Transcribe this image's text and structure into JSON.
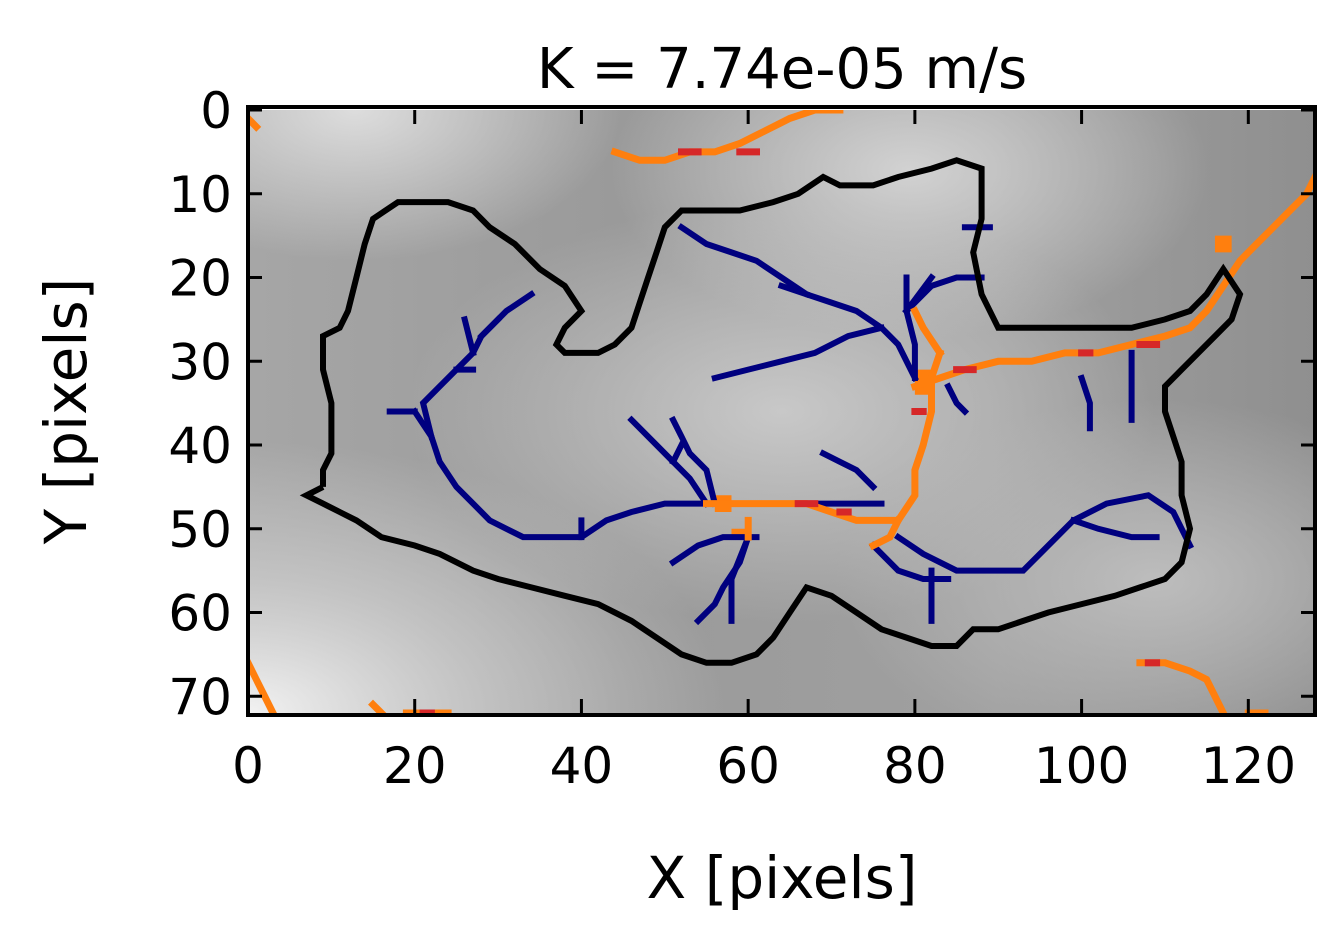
{
  "chart_data": {
    "type": "heatmap",
    "title": "K = 7.74e-05 m/s",
    "xlabel": "X [pixels]",
    "ylabel": "Y [pixels]",
    "xlim": [
      0,
      128
    ],
    "ylim": [
      72,
      0
    ],
    "xticks": [
      0,
      20,
      40,
      60,
      80,
      100,
      120
    ],
    "yticks": [
      0,
      10,
      20,
      30,
      40,
      50,
      60,
      70
    ],
    "colormap": "gray",
    "grid": false,
    "colors": {
      "boundary": "#000000",
      "blue_channels": "#00007f",
      "orange_channels": "#ff7f0e",
      "red_channels": "#d62728"
    },
    "basin_boundary": [
      [
        9,
        45
      ],
      [
        7,
        46
      ],
      [
        9,
        47
      ],
      [
        11,
        48
      ],
      [
        13,
        49
      ],
      [
        16,
        51
      ],
      [
        20,
        52
      ],
      [
        23,
        53
      ],
      [
        27,
        55
      ],
      [
        30,
        56
      ],
      [
        34,
        57
      ],
      [
        38,
        58
      ],
      [
        42,
        59
      ],
      [
        46,
        61
      ],
      [
        49,
        63
      ],
      [
        52,
        65
      ],
      [
        55,
        66
      ],
      [
        58,
        66
      ],
      [
        61,
        65
      ],
      [
        63,
        63
      ],
      [
        65,
        60
      ],
      [
        67,
        57
      ],
      [
        70,
        58
      ],
      [
        73,
        60
      ],
      [
        76,
        62
      ],
      [
        79,
        63
      ],
      [
        82,
        64
      ],
      [
        85,
        64
      ],
      [
        87,
        62
      ],
      [
        90,
        62
      ],
      [
        93,
        61
      ],
      [
        96,
        60
      ],
      [
        100,
        59
      ],
      [
        104,
        58
      ],
      [
        107,
        57
      ],
      [
        110,
        56
      ],
      [
        112,
        54
      ],
      [
        113,
        50
      ],
      [
        112,
        46
      ],
      [
        112,
        42
      ],
      [
        111,
        39
      ],
      [
        110,
        36
      ],
      [
        110,
        33
      ],
      [
        112,
        31
      ],
      [
        114,
        29
      ],
      [
        116,
        27
      ],
      [
        118,
        25
      ],
      [
        119,
        22
      ],
      [
        117,
        19
      ],
      [
        115,
        22
      ],
      [
        113,
        24
      ],
      [
        110,
        25
      ],
      [
        106,
        26
      ],
      [
        102,
        26
      ],
      [
        98,
        26
      ],
      [
        94,
        26
      ],
      [
        90,
        26
      ],
      [
        88,
        22
      ],
      [
        87,
        17
      ],
      [
        88,
        13
      ],
      [
        88,
        7
      ],
      [
        85,
        6
      ],
      [
        82,
        7
      ],
      [
        78,
        8
      ],
      [
        75,
        9
      ],
      [
        71,
        9
      ],
      [
        69,
        8
      ],
      [
        66,
        10
      ],
      [
        63,
        11
      ],
      [
        59,
        12
      ],
      [
        55,
        12
      ],
      [
        52,
        12
      ],
      [
        50,
        14
      ],
      [
        49,
        17
      ],
      [
        48,
        20
      ],
      [
        47,
        23
      ],
      [
        46,
        26
      ],
      [
        44,
        28
      ],
      [
        42,
        29
      ],
      [
        40,
        29
      ],
      [
        38,
        29
      ],
      [
        37,
        28
      ],
      [
        38,
        26
      ],
      [
        40,
        24
      ],
      [
        38,
        21
      ],
      [
        35,
        19
      ],
      [
        32,
        16
      ],
      [
        29,
        14
      ],
      [
        27,
        12
      ],
      [
        24,
        11
      ],
      [
        21,
        11
      ],
      [
        18,
        11
      ],
      [
        15,
        13
      ],
      [
        14,
        16
      ],
      [
        13,
        20
      ],
      [
        12,
        24
      ],
      [
        11,
        26
      ],
      [
        9,
        27
      ],
      [
        9,
        31
      ],
      [
        10,
        35
      ],
      [
        10,
        38
      ],
      [
        10,
        41
      ],
      [
        9,
        43
      ],
      [
        9,
        45
      ]
    ],
    "blue_channels": [
      [
        [
          20,
          36
        ],
        [
          22,
          39
        ],
        [
          23,
          42
        ],
        [
          25,
          45
        ],
        [
          27,
          47
        ],
        [
          29,
          49
        ],
        [
          31,
          50
        ],
        [
          33,
          51
        ],
        [
          37,
          51
        ],
        [
          40,
          51
        ],
        [
          43,
          49
        ],
        [
          46,
          48
        ],
        [
          50,
          47
        ],
        [
          55,
          47
        ]
      ],
      [
        [
          17,
          36
        ],
        [
          20,
          36
        ]
      ],
      [
        [
          22,
          39
        ],
        [
          21,
          35
        ],
        [
          23,
          33
        ],
        [
          25,
          31
        ],
        [
          27,
          29
        ],
        [
          28,
          27
        ],
        [
          31,
          24
        ],
        [
          34,
          22
        ]
      ],
      [
        [
          25,
          31
        ],
        [
          27,
          31
        ]
      ],
      [
        [
          27,
          29
        ],
        [
          26,
          25
        ]
      ],
      [
        [
          28,
          27
        ],
        [
          30,
          25
        ]
      ],
      [
        [
          40,
          49
        ],
        [
          40,
          51
        ]
      ],
      [
        [
          55,
          47
        ],
        [
          53,
          44
        ],
        [
          51,
          42
        ],
        [
          49,
          40
        ],
        [
          46,
          37
        ]
      ],
      [
        [
          51,
          42
        ],
        [
          52,
          40
        ]
      ],
      [
        [
          55,
          47
        ],
        [
          59,
          47
        ],
        [
          63,
          47
        ],
        [
          67,
          47
        ],
        [
          70,
          47
        ],
        [
          73,
          47
        ],
        [
          76,
          47
        ]
      ],
      [
        [
          56,
          47
        ],
        [
          55,
          43
        ],
        [
          53,
          41
        ],
        [
          52,
          39
        ],
        [
          51,
          37
        ]
      ],
      [
        [
          61,
          51
        ],
        [
          57,
          51
        ],
        [
          54,
          52
        ],
        [
          51,
          54
        ]
      ],
      [
        [
          60,
          51
        ],
        [
          59,
          54
        ],
        [
          57,
          57
        ],
        [
          56,
          59
        ],
        [
          54,
          61
        ]
      ],
      [
        [
          60,
          51
        ],
        [
          58,
          56
        ],
        [
          58,
          61
        ]
      ],
      [
        [
          75,
          45
        ],
        [
          73,
          43
        ],
        [
          71,
          42
        ],
        [
          69,
          41
        ]
      ],
      [
        [
          80,
          32
        ],
        [
          78,
          28
        ],
        [
          76,
          26
        ],
        [
          73,
          24
        ],
        [
          70,
          23
        ],
        [
          67,
          22
        ],
        [
          64,
          20
        ],
        [
          61,
          18
        ],
        [
          58,
          17
        ],
        [
          55,
          16
        ],
        [
          52,
          14
        ]
      ],
      [
        [
          76,
          26
        ],
        [
          72,
          27
        ],
        [
          68,
          29
        ],
        [
          64,
          30
        ],
        [
          60,
          31
        ],
        [
          56,
          32
        ]
      ],
      [
        [
          67,
          22
        ],
        [
          64,
          21
        ]
      ],
      [
        [
          80,
          32
        ],
        [
          80,
          28
        ],
        [
          79,
          24
        ],
        [
          79,
          20
        ]
      ],
      [
        [
          79,
          24
        ],
        [
          82,
          21
        ],
        [
          85,
          20
        ],
        [
          88,
          20
        ]
      ],
      [
        [
          79,
          24
        ],
        [
          82,
          20
        ]
      ],
      [
        [
          86,
          14
        ],
        [
          89,
          14
        ]
      ],
      [
        [
          84,
          33
        ],
        [
          85,
          35
        ],
        [
          86,
          36
        ]
      ],
      [
        [
          78,
          51
        ],
        [
          81,
          53
        ],
        [
          85,
          55
        ],
        [
          89,
          55
        ],
        [
          93,
          55
        ],
        [
          96,
          52
        ],
        [
          99,
          49
        ],
        [
          103,
          47
        ],
        [
          108,
          46
        ],
        [
          111,
          48
        ],
        [
          113,
          52
        ]
      ],
      [
        [
          99,
          49
        ],
        [
          102,
          50
        ],
        [
          106,
          51
        ],
        [
          109,
          51
        ]
      ],
      [
        [
          75,
          52
        ],
        [
          78,
          55
        ],
        [
          81,
          56
        ],
        [
          84,
          56
        ]
      ],
      [
        [
          82,
          55
        ],
        [
          82,
          61
        ]
      ],
      [
        [
          100,
          32
        ],
        [
          101,
          35
        ],
        [
          101,
          38
        ]
      ],
      [
        [
          106,
          29
        ],
        [
          106,
          33
        ],
        [
          106,
          37
        ]
      ]
    ],
    "orange_channels": [
      [
        [
          55,
          47
        ],
        [
          59,
          47
        ],
        [
          63,
          47
        ],
        [
          67,
          47
        ],
        [
          70,
          48
        ],
        [
          73,
          49
        ],
        [
          76,
          49
        ],
        [
          78,
          49
        ],
        [
          80,
          46
        ],
        [
          80,
          43
        ],
        [
          81,
          40
        ],
        [
          82,
          36
        ],
        [
          82,
          32
        ],
        [
          83,
          29
        ]
      ],
      [
        [
          78,
          49
        ],
        [
          77,
          51
        ],
        [
          75,
          52
        ]
      ],
      [
        [
          60,
          49
        ],
        [
          60,
          51
        ]
      ],
      [
        [
          80,
          33
        ],
        [
          83,
          32
        ],
        [
          86,
          31
        ],
        [
          90,
          30
        ],
        [
          94,
          30
        ],
        [
          98,
          29
        ],
        [
          102,
          29
        ],
        [
          106,
          28
        ],
        [
          110,
          27
        ],
        [
          113,
          26
        ],
        [
          115,
          24
        ],
        [
          117,
          21
        ],
        [
          119,
          18
        ],
        [
          121,
          16
        ],
        [
          123,
          14
        ],
        [
          125,
          12
        ],
        [
          127,
          10
        ],
        [
          128,
          8
        ]
      ],
      [
        [
          83,
          29
        ],
        [
          81,
          26
        ],
        [
          80,
          24
        ]
      ],
      [
        [
          44,
          5
        ],
        [
          47,
          6
        ],
        [
          50,
          6
        ],
        [
          53,
          5
        ],
        [
          56,
          5
        ],
        [
          59,
          4
        ],
        [
          61,
          3
        ],
        [
          63,
          2
        ],
        [
          65,
          1
        ],
        [
          68,
          0
        ],
        [
          71,
          0
        ]
      ],
      [
        [
          0,
          1
        ],
        [
          1,
          2
        ]
      ],
      [
        [
          0,
          66
        ],
        [
          1,
          68
        ],
        [
          2,
          70
        ],
        [
          3,
          72
        ]
      ],
      [
        [
          107,
          66
        ],
        [
          110,
          66
        ],
        [
          113,
          67
        ],
        [
          115,
          68
        ],
        [
          116,
          70
        ],
        [
          117,
          72
        ]
      ],
      [
        [
          15,
          71
        ],
        [
          16,
          72
        ]
      ],
      [
        [
          19,
          72
        ],
        [
          24,
          72
        ]
      ],
      [
        [
          120,
          72
        ],
        [
          122,
          72
        ]
      ]
    ],
    "red_channels": [
      [
        [
          66,
          47
        ],
        [
          68,
          47
        ]
      ],
      [
        [
          71,
          48
        ],
        [
          72,
          48
        ]
      ],
      [
        [
          85,
          31
        ],
        [
          87,
          31
        ]
      ],
      [
        [
          100,
          29
        ],
        [
          101,
          29
        ]
      ],
      [
        [
          107,
          28
        ],
        [
          109,
          28
        ]
      ],
      [
        [
          59,
          5
        ],
        [
          61,
          5
        ]
      ],
      [
        [
          52,
          5
        ],
        [
          54,
          5
        ]
      ],
      [
        [
          21,
          72
        ],
        [
          22,
          72
        ]
      ],
      [
        [
          108,
          66
        ],
        [
          109,
          66
        ]
      ],
      [
        [
          80,
          36
        ],
        [
          81,
          36
        ]
      ]
    ],
    "orange_blobs": [
      [
        [
          56,
          46
        ],
        [
          58,
          48
        ]
      ],
      [
        [
          80,
          31
        ],
        [
          82,
          34
        ]
      ],
      [
        [
          116,
          15
        ],
        [
          118,
          17
        ]
      ],
      [
        [
          58,
          50
        ],
        [
          60,
          51
        ]
      ]
    ]
  }
}
